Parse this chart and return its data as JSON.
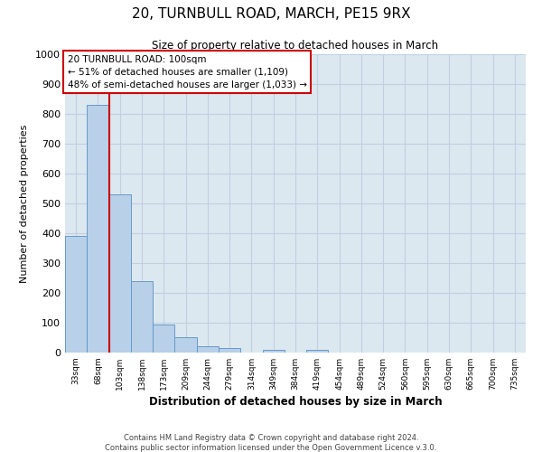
{
  "title": "20, TURNBULL ROAD, MARCH, PE15 9RX",
  "subtitle": "Size of property relative to detached houses in March",
  "xlabel": "Distribution of detached houses by size in March",
  "ylabel": "Number of detached properties",
  "bar_labels": [
    "33sqm",
    "68sqm",
    "103sqm",
    "138sqm",
    "173sqm",
    "209sqm",
    "244sqm",
    "279sqm",
    "314sqm",
    "349sqm",
    "384sqm",
    "419sqm",
    "454sqm",
    "489sqm",
    "524sqm",
    "560sqm",
    "595sqm",
    "630sqm",
    "665sqm",
    "700sqm",
    "735sqm"
  ],
  "bar_values": [
    390,
    830,
    530,
    240,
    95,
    52,
    22,
    15,
    0,
    10,
    0,
    10,
    0,
    0,
    0,
    0,
    0,
    0,
    0,
    0,
    0
  ],
  "bar_color": "#b8d0e8",
  "bar_edge_color": "#6699cc",
  "grid_color": "#c0d0e0",
  "background_color": "#dce8f0",
  "vline_color": "#cc0000",
  "annotation_title": "20 TURNBULL ROAD: 100sqm",
  "annotation_line1": "← 51% of detached houses are smaller (1,109)",
  "annotation_line2": "48% of semi-detached houses are larger (1,033) →",
  "annotation_box_facecolor": "#ffffff",
  "annotation_box_edgecolor": "#cc0000",
  "ylim": [
    0,
    1000
  ],
  "yticks": [
    0,
    100,
    200,
    300,
    400,
    500,
    600,
    700,
    800,
    900,
    1000
  ],
  "footer1": "Contains HM Land Registry data © Crown copyright and database right 2024.",
  "footer2": "Contains public sector information licensed under the Open Government Licence v.3.0."
}
